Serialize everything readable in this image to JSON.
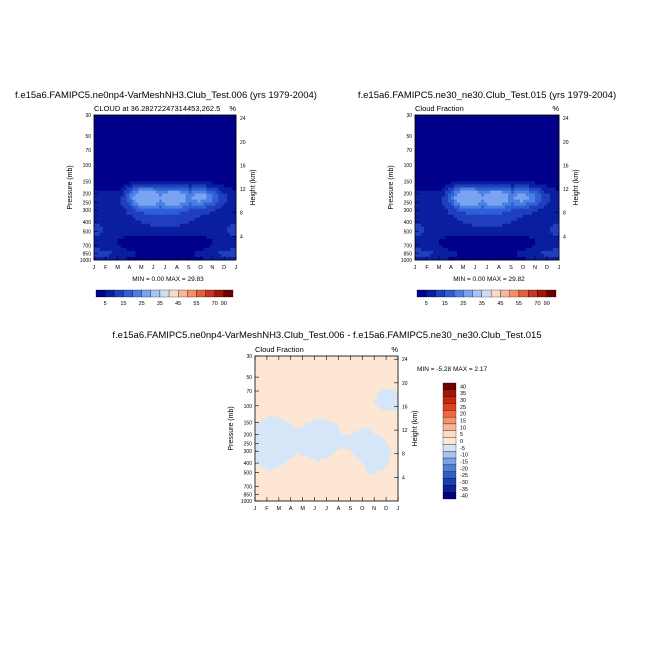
{
  "chart_data": [
    {
      "type": "contour",
      "title": "f.e15a6.FAMIPC5.ne0np4-VarMeshNH3.Club_Test.006 (yrs 1979-2004)",
      "subtitle_left": "CLOUD at 36.28272247314453,262.5",
      "subtitle_right": "%",
      "ylabel_left": "Pressure (mb)",
      "ylabel_right": "Height (km)",
      "x_ticks": [
        "J",
        "F",
        "M",
        "A",
        "M",
        "J",
        "J",
        "A",
        "S",
        "O",
        "N",
        "D",
        "J"
      ],
      "pressure_ticks": [
        "30",
        "50",
        "70",
        "100",
        "150",
        "200",
        "250",
        "300",
        "400",
        "500",
        "700",
        "850",
        "1000"
      ],
      "height_ticks": [
        "4",
        "8",
        "12",
        "16",
        "20",
        "24"
      ],
      "stats": "MIN =   0.00 MAX =  29.83",
      "colorbar_labels": [
        "5",
        "15",
        "25",
        "35",
        "45",
        "55",
        "70",
        "90"
      ],
      "levels": [
        5,
        10,
        15,
        20,
        25,
        30,
        35,
        40,
        45,
        50,
        55,
        60,
        70,
        80,
        90
      ],
      "max_value": 29.83,
      "cloud_layer_hPa": [
        150,
        300
      ],
      "peak_month": "May"
    },
    {
      "type": "contour",
      "title": "f.e15a6.FAMIPC5.ne30_ne30.Club_Test.015 (yrs 1979-2004)",
      "subtitle_left": "Cloud Fraction",
      "subtitle_right": "%",
      "ylabel_left": "Pressure (mb)",
      "ylabel_right": "Height (km)",
      "x_ticks": [
        "J",
        "F",
        "M",
        "A",
        "M",
        "J",
        "J",
        "A",
        "S",
        "O",
        "N",
        "D",
        "J"
      ],
      "pressure_ticks": [
        "30",
        "50",
        "70",
        "100",
        "150",
        "200",
        "250",
        "300",
        "400",
        "500",
        "700",
        "850",
        "1000"
      ],
      "height_ticks": [
        "4",
        "8",
        "12",
        "16",
        "20",
        "24"
      ],
      "stats": "MIN =   0.00 MAX =  29.82",
      "colorbar_labels": [
        "5",
        "15",
        "25",
        "35",
        "45",
        "55",
        "70",
        "90"
      ],
      "levels": [
        5,
        10,
        15,
        20,
        25,
        30,
        35,
        40,
        45,
        50,
        55,
        60,
        70,
        80,
        90
      ],
      "max_value": 29.82,
      "cloud_layer_hPa": [
        150,
        300
      ],
      "peak_month": "May"
    },
    {
      "type": "contour",
      "title": "f.e15a6.FAMIPC5.ne0np4-VarMeshNH3.Club_Test.006 - f.e15a6.FAMIPC5.ne30_ne30.Club_Test.015",
      "subtitle_left": "Cloud Fraction",
      "subtitle_right": "%",
      "ylabel_left": "Pressure (mb)",
      "ylabel_right": "Height (km)",
      "x_ticks": [
        "J",
        "F",
        "M",
        "A",
        "M",
        "J",
        "J",
        "A",
        "S",
        "O",
        "N",
        "D",
        "J"
      ],
      "pressure_ticks": [
        "30",
        "50",
        "70",
        "100",
        "150",
        "200",
        "250",
        "300",
        "400",
        "500",
        "700",
        "850",
        "1000"
      ],
      "height_ticks": [
        "4",
        "8",
        "12",
        "16",
        "20",
        "24"
      ],
      "stats": "MIN =  -5.28 MAX =   2.17",
      "colorbar_labels": [
        "40",
        "35",
        "30",
        "25",
        "20",
        "15",
        "10",
        "5",
        "0",
        "-5",
        "-10",
        "-15",
        "-20",
        "-25",
        "-30",
        "-35",
        "-40"
      ],
      "levels": [
        -40,
        -35,
        -30,
        -25,
        -20,
        -15,
        -10,
        -5,
        0,
        5,
        10,
        15,
        20,
        25,
        30,
        35,
        40
      ],
      "min_value": -5.28,
      "max_value": 2.17
    }
  ],
  "colors": {
    "seq": [
      "#00008b",
      "#0a1fa0",
      "#1f3fbf",
      "#2d5fd6",
      "#4b7fe6",
      "#7aa3f0",
      "#a8c4f5",
      "#cfdcf7",
      "#f9dcc8",
      "#f6b79b",
      "#f08f6a",
      "#e2603f",
      "#c93420",
      "#9e1808",
      "#6e0000"
    ],
    "div": [
      "#6e0000",
      "#9e1808",
      "#c0280f",
      "#dc4222",
      "#eb6a40",
      "#f5926a",
      "#f8b697",
      "#fbdcc7",
      "#ffe7d5",
      "#d4e5f8",
      "#a7c4ef",
      "#7ba0e4",
      "#4f7fd9",
      "#2d5fc7",
      "#1a40aa",
      "#0d2490",
      "#00008b"
    ],
    "diff_pos": "#fde7d4",
    "diff_neg": "#d5e6f8"
  }
}
